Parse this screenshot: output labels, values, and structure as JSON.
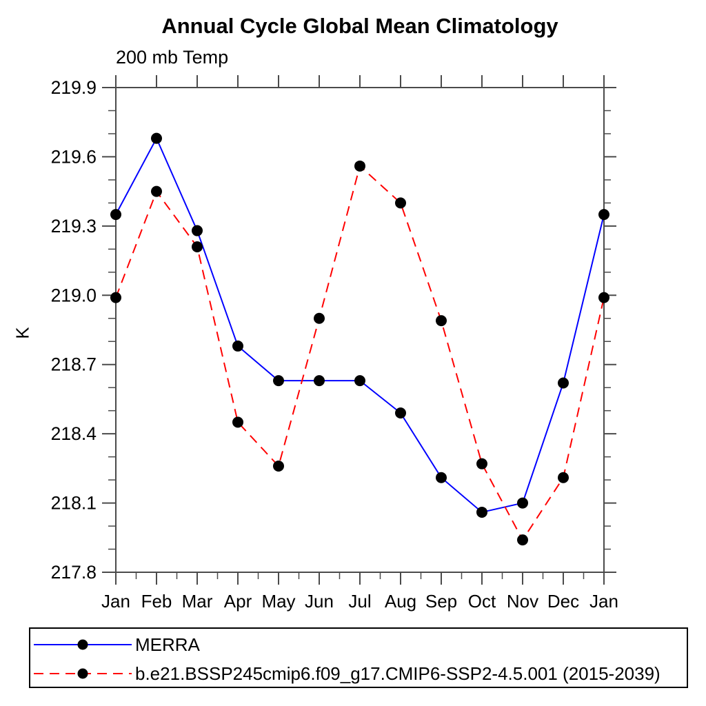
{
  "title": "Annual Cycle Global Mean Climatology",
  "subtitle": "200 mb Temp",
  "ylabel": "K",
  "legend": {
    "items": [
      {
        "label": "MERRA",
        "line": "solid",
        "color": "#0000ff"
      },
      {
        "label": "b.e21.BSSP245cmip6.f09_g17.CMIP6-SSP2-4.5.001 (2015-2039)",
        "line": "dashed",
        "color": "#ff0000"
      }
    ]
  },
  "colors": {
    "merra_line": "#0000ff",
    "model_line": "#ff0000",
    "marker": "#000000",
    "axis": "#4a4a4a",
    "text": "#000000",
    "background": "#ffffff"
  },
  "chart_data": {
    "type": "line",
    "title": "Annual Cycle Global Mean Climatology",
    "subtitle": "200 mb Temp",
    "xlabel": "",
    "ylabel": "K",
    "categories": [
      "Jan",
      "Feb",
      "Mar",
      "Apr",
      "May",
      "Jun",
      "Jul",
      "Aug",
      "Sep",
      "Oct",
      "Nov",
      "Dec",
      "Jan"
    ],
    "series": [
      {
        "name": "MERRA",
        "color": "#0000ff",
        "line": "solid",
        "marker": "filled-circle",
        "values": [
          219.35,
          219.68,
          219.28,
          218.78,
          218.63,
          218.63,
          218.63,
          218.49,
          218.21,
          218.06,
          218.1,
          218.62,
          219.35
        ]
      },
      {
        "name": "b.e21.BSSP245cmip6.f09_g17.CMIP6-SSP2-4.5.001 (2015-2039)",
        "color": "#ff0000",
        "line": "dashed",
        "marker": "filled-circle",
        "values": [
          218.99,
          219.45,
          219.21,
          218.45,
          218.26,
          218.9,
          219.56,
          219.4,
          218.89,
          218.27,
          217.94,
          218.21,
          218.99
        ]
      }
    ],
    "ylim": [
      217.8,
      219.9
    ],
    "yticks": [
      219.9,
      219.6,
      219.3,
      219.0,
      218.7,
      218.4,
      218.1,
      217.8
    ],
    "ytick_labels": [
      "219.9",
      "219.6",
      "219.3",
      "219.0",
      "218.7",
      "218.4",
      "218.1",
      "217.8"
    ],
    "y_minor_step": 0.1,
    "x_minor": "half-step",
    "grid": false,
    "legend_position": "bottom-box"
  }
}
